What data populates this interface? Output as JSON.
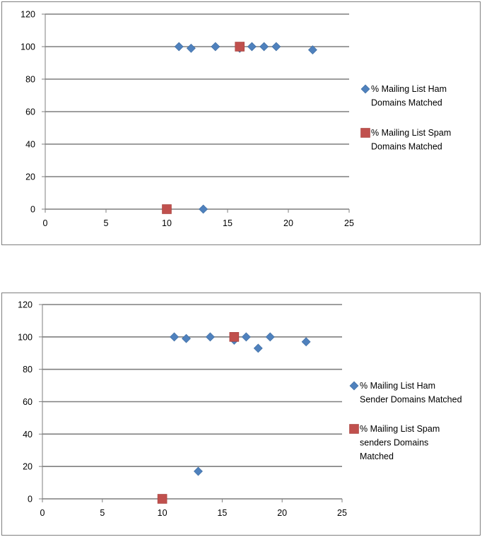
{
  "chart_data": [
    {
      "type": "scatter",
      "xlim": [
        0,
        25
      ],
      "ylim": [
        0,
        120
      ],
      "xticks": [
        "0",
        "5",
        "10",
        "15",
        "20",
        "25"
      ],
      "yticks": [
        "0",
        "20",
        "40",
        "60",
        "80",
        "100",
        "120"
      ],
      "grid": "horizontal",
      "legend_position": "right",
      "series": [
        {
          "name": "% Mailing List Ham Domains Matched",
          "legend_lines": [
            "% Mailing List Ham",
            "Domains Matched"
          ],
          "marker": "diamond",
          "color": "#4f81bd",
          "points": [
            [
              11,
              100
            ],
            [
              12,
              99
            ],
            [
              13,
              0
            ],
            [
              14,
              100
            ],
            [
              16,
              99
            ],
            [
              17,
              100
            ],
            [
              18,
              100
            ],
            [
              19,
              100
            ],
            [
              22,
              98
            ]
          ]
        },
        {
          "name": "% Mailing List Spam Domains Matched",
          "legend_lines": [
            "% Mailing List Spam",
            "Domains Matched"
          ],
          "marker": "square",
          "color": "#c0504d",
          "points": [
            [
              10,
              0
            ],
            [
              16,
              100
            ]
          ]
        }
      ]
    },
    {
      "type": "scatter",
      "xlim": [
        0,
        25
      ],
      "ylim": [
        0,
        120
      ],
      "xticks": [
        "0",
        "5",
        "10",
        "15",
        "20",
        "25"
      ],
      "yticks": [
        "0",
        "20",
        "40",
        "60",
        "80",
        "100",
        "120"
      ],
      "grid": "horizontal",
      "legend_position": "right",
      "series": [
        {
          "name": "% Mailing List Ham Sender Domains Matched",
          "legend_lines": [
            "% Mailing List Ham",
            "Sender Domains Matched"
          ],
          "marker": "diamond",
          "color": "#4f81bd",
          "points": [
            [
              11,
              100
            ],
            [
              12,
              99
            ],
            [
              13,
              17
            ],
            [
              14,
              100
            ],
            [
              16,
              98
            ],
            [
              17,
              100
            ],
            [
              18,
              93
            ],
            [
              19,
              100
            ],
            [
              22,
              97
            ]
          ]
        },
        {
          "name": "% Mailing List Spam senders Domains Matched",
          "legend_lines": [
            "% Mailing List Spam",
            "senders Domains",
            "Matched"
          ],
          "marker": "square",
          "color": "#c0504d",
          "points": [
            [
              10,
              0
            ],
            [
              16,
              100
            ]
          ]
        }
      ]
    }
  ]
}
